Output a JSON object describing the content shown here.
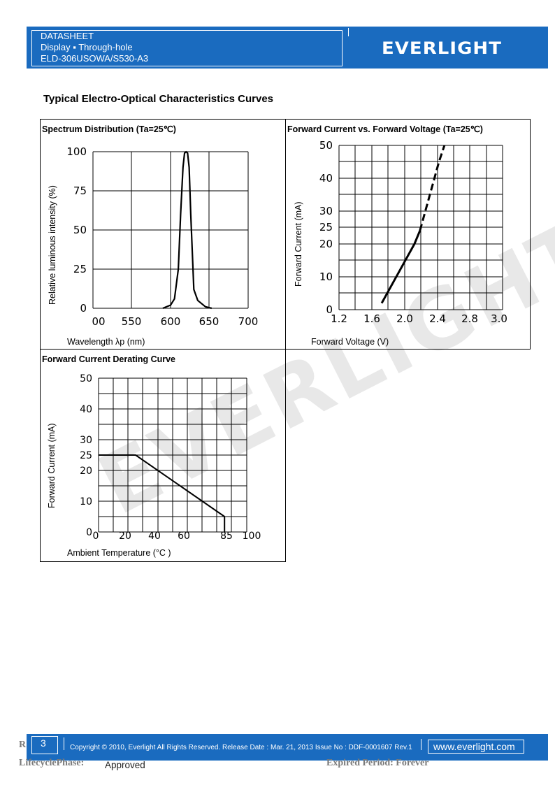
{
  "header": {
    "line1": "DATASHEET",
    "line2": "Display ▪ Through-hole",
    "line3": "ELD-306USOWA/S530-A3",
    "logo": "EVERLIGHT",
    "bg_color": "#1a6bbf"
  },
  "section_title": "Typical Electro-Optical Characteristics Curves",
  "panels": {
    "spectrum": {
      "title": "Spectrum Distribution (Ta=25℃)",
      "xlabel": "Wavelength λp (nm)",
      "ylabel": "Relative luminous intensity (%)"
    },
    "iv": {
      "title": "Forward Current vs. Forward Voltage (Ta=25℃)",
      "xlabel": "Forward Voltage (V)",
      "ylabel": "Forward Current (mA)"
    },
    "derating": {
      "title": "Forward Current Derating Curve",
      "xlabel": "Ambient Temperature (°C )",
      "ylabel": "Forward Current (mA)"
    }
  },
  "chart_data": [
    {
      "type": "line",
      "title": "Spectrum Distribution (Ta=25℃)",
      "xlabel": "Wavelength λp (nm)",
      "ylabel": "Relative luminous intensity (%)",
      "xticks": [
        "00",
        "550",
        "600",
        "650",
        "700"
      ],
      "yticks": [
        "0",
        "25",
        "50",
        "75",
        "100"
      ],
      "xlim": [
        500,
        700
      ],
      "ylim": [
        0,
        100
      ],
      "grid": true,
      "series": [
        {
          "x": [
            590,
            600,
            605,
            610,
            613,
            616,
            618,
            620,
            622,
            624,
            626,
            630,
            635,
            640,
            645,
            653
          ],
          "y": [
            0,
            2,
            6,
            25,
            60,
            90,
            99,
            100,
            99,
            90,
            60,
            12,
            5,
            3,
            1,
            0
          ]
        }
      ]
    },
    {
      "type": "line",
      "title": "Forward Current vs. Forward Voltage (Ta=25℃)",
      "xlabel": "Forward Voltage (V)",
      "ylabel": "Forward Current (mA)",
      "xticks": [
        "1.2",
        "1.6",
        "2.0",
        "2.4",
        "2.8",
        "3.0"
      ],
      "yticks": [
        "0",
        "10",
        "20",
        "25",
        "30",
        "40",
        "50"
      ],
      "xlim": [
        1.2,
        3.0
      ],
      "ylim": [
        0,
        50
      ],
      "grid": true,
      "series": [
        {
          "style": "solid",
          "x": [
            1.67,
            1.75,
            1.85,
            1.95,
            2.03,
            2.09
          ],
          "y": [
            2,
            6,
            11,
            16,
            20,
            24
          ]
        },
        {
          "style": "dashed",
          "x": [
            2.09,
            2.15,
            2.2,
            2.25,
            2.3,
            2.36
          ],
          "y": [
            24,
            30,
            35,
            40,
            45,
            50
          ]
        }
      ]
    },
    {
      "type": "line",
      "title": "Forward Current Derating Curve",
      "xlabel": "Ambient Temperature (°C )",
      "ylabel": "Forward Current (mA)",
      "xticks": [
        "0",
        "20",
        "40",
        "60",
        "85",
        "100"
      ],
      "yticks": [
        "0",
        "10",
        "20",
        "25",
        "30",
        "40",
        "50"
      ],
      "xlim": [
        0,
        100
      ],
      "ylim": [
        0,
        50
      ],
      "grid": true,
      "series": [
        {
          "x": [
            0,
            25,
            85,
            85
          ],
          "y": [
            25,
            25,
            5,
            0
          ]
        }
      ]
    }
  ],
  "watermark": "EVERLIGHT",
  "footer": {
    "page": "3",
    "copyright": "Copyright © 2010, Everlight All Rights Reserved. Release Date : Mar. 21, 2013 Issue No : DDF-0001607 Rev.1",
    "website": "www.everlight.com",
    "bg_color": "#1a6bbf"
  },
  "below_footer": {
    "left_label": "LifecyclePhase:",
    "left_value": "Approved",
    "right_label": "Expired Period: Forever",
    "fragment": "R"
  }
}
